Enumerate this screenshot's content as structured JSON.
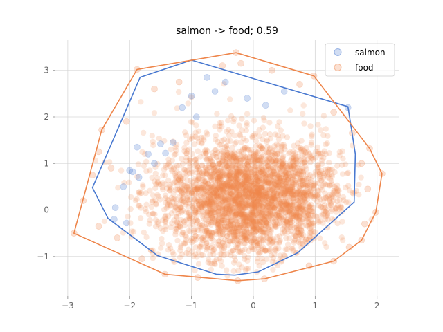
{
  "chart_data": {
    "type": "scatter",
    "title": "salmon -> food; 0.59",
    "xlabel": "",
    "ylabel": "",
    "xlim": [
      -3.2,
      2.35
    ],
    "ylim": [
      -1.85,
      3.65
    ],
    "xticks": [
      -3,
      -2,
      -1,
      0,
      1,
      2
    ],
    "yticks": [
      -1,
      0,
      1,
      2,
      3
    ],
    "grid": true,
    "legend_position": "top-right",
    "series": [
      {
        "name": "salmon",
        "color": "#4878d0",
        "point_alpha": 0.2,
        "hull": [
          [
            -1.0,
            3.22
          ],
          [
            1.53,
            2.22
          ],
          [
            1.65,
            1.2
          ],
          [
            1.63,
            0.17
          ],
          [
            0.72,
            -0.92
          ],
          [
            0.08,
            -1.33
          ],
          [
            -0.3,
            -1.4
          ],
          [
            -0.6,
            -1.38
          ],
          [
            -1.55,
            -0.98
          ],
          [
            -2.35,
            -0.18
          ],
          [
            -2.6,
            0.48
          ],
          [
            -1.83,
            2.85
          ]
        ],
        "points": [
          [
            -1.88,
            1.35
          ],
          [
            -2.0,
            0.85
          ],
          [
            -1.95,
            0.82
          ],
          [
            -2.1,
            0.5
          ],
          [
            -2.23,
            0.05
          ],
          [
            -2.25,
            -0.2
          ],
          [
            -2.05,
            -0.28
          ],
          [
            -1.0,
            2.45
          ],
          [
            -0.45,
            2.75
          ],
          [
            -0.62,
            2.55
          ],
          [
            -1.15,
            2.2
          ],
          [
            1.53,
            2.2
          ],
          [
            -1.3,
            1.45
          ],
          [
            -1.5,
            1.42
          ],
          [
            -1.7,
            1.2
          ],
          [
            -1.42,
            1.22
          ],
          [
            -0.92,
            2.0
          ],
          [
            -0.1,
            2.4
          ],
          [
            0.5,
            2.55
          ],
          [
            -0.75,
            2.85
          ],
          [
            0.2,
            2.25
          ],
          [
            -1.6,
            1.0
          ],
          [
            -1.85,
            0.7
          ]
        ]
      },
      {
        "name": "food",
        "color": "#ee854a",
        "point_alpha": 0.2,
        "hull": [
          [
            -0.28,
            3.38
          ],
          [
            0.98,
            2.88
          ],
          [
            1.88,
            1.32
          ],
          [
            2.08,
            0.78
          ],
          [
            1.98,
            -0.05
          ],
          [
            1.75,
            -0.65
          ],
          [
            1.3,
            -1.1
          ],
          [
            0.18,
            -1.48
          ],
          [
            -0.25,
            -1.52
          ],
          [
            -1.43,
            -1.38
          ],
          [
            -2.9,
            -0.5
          ],
          [
            -2.45,
            1.72
          ],
          [
            -1.88,
            3.02
          ]
        ],
        "points": [
          [
            -0.28,
            3.38
          ],
          [
            0.98,
            2.88
          ],
          [
            1.88,
            1.32
          ],
          [
            2.08,
            0.78
          ],
          [
            1.98,
            -0.05
          ],
          [
            1.75,
            -0.65
          ],
          [
            1.3,
            -1.1
          ],
          [
            0.18,
            -1.48
          ],
          [
            -0.25,
            -1.52
          ],
          [
            -1.43,
            -1.38
          ],
          [
            -2.9,
            -0.5
          ],
          [
            -2.45,
            1.72
          ],
          [
            -1.88,
            3.02
          ],
          [
            -2.5,
            1.25
          ],
          [
            -2.6,
            0.75
          ],
          [
            -2.3,
            0.9
          ],
          [
            -2.75,
            0.2
          ],
          [
            -2.5,
            -0.35
          ],
          [
            -1.6,
            2.6
          ],
          [
            -1.2,
            2.75
          ],
          [
            -0.5,
            3.1
          ],
          [
            0.3,
            3.0
          ],
          [
            0.75,
            2.7
          ],
          [
            1.3,
            2.1
          ],
          [
            1.6,
            1.65
          ],
          [
            1.75,
            1.0
          ],
          [
            1.85,
            0.45
          ],
          [
            1.8,
            -0.3
          ],
          [
            1.55,
            -0.8
          ],
          [
            0.9,
            -1.2
          ],
          [
            -0.9,
            -1.45
          ],
          [
            -1.8,
            -1.05
          ],
          [
            -2.2,
            -0.6
          ],
          [
            -2.05,
            1.9
          ],
          [
            -0.2,
            3.15
          ]
        ]
      }
    ],
    "dense_cloud": {
      "series": "food",
      "center": [
        -0.05,
        0.25
      ],
      "spread": [
        0.75,
        0.65
      ]
    }
  }
}
